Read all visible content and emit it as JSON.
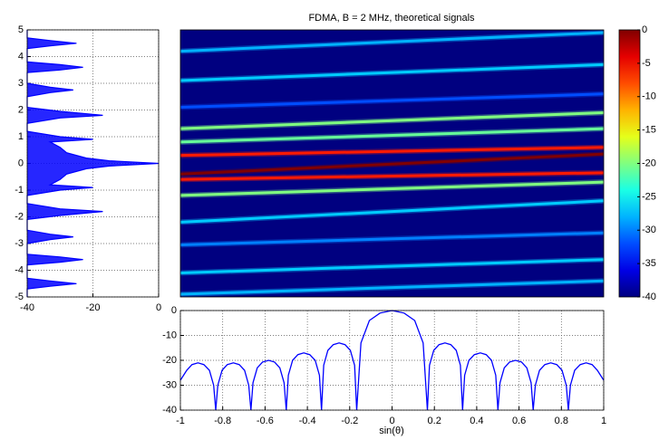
{
  "chart_data": [
    {
      "type": "spectrum",
      "color": "#0000ff",
      "xlim": [
        -40,
        0
      ],
      "xticks": [
        -40,
        -20,
        0
      ],
      "ylim": [
        -5,
        5
      ],
      "yticks": [
        -5,
        -4,
        -3,
        -2,
        -1,
        0,
        1,
        2,
        3,
        4,
        5
      ],
      "grid": true,
      "y": [
        -5,
        -4.7,
        -4.6,
        -4.5,
        -4.4,
        -4.3,
        -3.8,
        -3.7,
        -3.6,
        -3.5,
        -3.4,
        -3.0,
        -2.85,
        -2.75,
        -2.65,
        -2.5,
        -2.1,
        -1.95,
        -1.8,
        -1.7,
        -1.5,
        -1.2,
        -1.0,
        -0.9,
        -0.8,
        -0.6,
        -0.4,
        -0.2,
        -0.1,
        0,
        0.1,
        0.2,
        0.4,
        0.6,
        0.8,
        0.9,
        1.0,
        1.2,
        1.5,
        1.7,
        1.8,
        1.95,
        2.1,
        2.5,
        2.65,
        2.75,
        2.85,
        3.0,
        3.4,
        3.5,
        3.6,
        3.7,
        3.8,
        4.3,
        4.4,
        4.5,
        4.6,
        4.7,
        5
      ],
      "values": [
        -40,
        -40,
        -33,
        -25,
        -33,
        -40,
        -40,
        -30,
        -23,
        -30,
        -40,
        -40,
        -33,
        -26,
        -33,
        -40,
        -40,
        -30,
        -17,
        -30,
        -40,
        -40,
        -30,
        -20,
        -33,
        -30,
        -28,
        -22,
        -15,
        0,
        -15,
        -22,
        -28,
        -30,
        -33,
        -20,
        -30,
        -40,
        -40,
        -30,
        -17,
        -30,
        -40,
        -40,
        -33,
        -26,
        -33,
        -40,
        -40,
        -30,
        -23,
        -30,
        -40,
        -40,
        -33,
        -25,
        -33,
        -40,
        -40
      ]
    },
    {
      "type": "heatmap",
      "title": "FDMA, B = 2 MHz, theoretical signals",
      "xlim": [
        -1,
        1
      ],
      "ylim": [
        -5,
        5
      ],
      "clim": [
        -40,
        0
      ],
      "cticks": [
        0,
        -5,
        -10,
        -15,
        -20,
        -25,
        -30,
        -35,
        -40
      ],
      "stripes": [
        {
          "y_start": 4.2,
          "y_end": 4.9,
          "level": -28
        },
        {
          "y_start": 3.1,
          "y_end": 3.7,
          "level": -27
        },
        {
          "y_start": 2.1,
          "y_end": 2.6,
          "level": -32
        },
        {
          "y_start": 1.3,
          "y_end": 1.9,
          "level": -20
        },
        {
          "y_start": 0.8,
          "y_end": 1.3,
          "level": -21
        },
        {
          "y_start": 0.3,
          "y_end": 0.6,
          "level": -6
        },
        {
          "y_start": -0.4,
          "y_end": 0.35,
          "level": 0
        },
        {
          "y_start": -0.6,
          "y_end": -0.35,
          "level": -6
        },
        {
          "y_start": -1.2,
          "y_end": -0.7,
          "level": -20
        },
        {
          "y_start": -2.2,
          "y_end": -1.4,
          "level": -27
        },
        {
          "y_start": -3.05,
          "y_end": -2.6,
          "level": -30
        },
        {
          "y_start": -4.1,
          "y_end": -3.6,
          "level": -27
        },
        {
          "y_start": -4.9,
          "y_end": -4.4,
          "level": -28
        }
      ]
    },
    {
      "type": "line",
      "xlabel": "sin(θ)",
      "color": "#0000ff",
      "xlim": [
        -1,
        1
      ],
      "xticks": [
        -1,
        -0.8,
        -0.6,
        -0.4,
        -0.2,
        0,
        0.2,
        0.4,
        0.6,
        0.8,
        1
      ],
      "ylim": [
        -40,
        0
      ],
      "yticks": [
        0,
        -10,
        -20,
        -30,
        -40
      ],
      "grid": true,
      "x": [
        -1,
        -0.97,
        -0.945,
        -0.917,
        -0.889,
        -0.863,
        -0.843,
        -0.833,
        -0.823,
        -0.803,
        -0.778,
        -0.75,
        -0.722,
        -0.697,
        -0.677,
        -0.667,
        -0.657,
        -0.637,
        -0.612,
        -0.583,
        -0.555,
        -0.53,
        -0.51,
        -0.5,
        -0.49,
        -0.47,
        -0.445,
        -0.417,
        -0.389,
        -0.363,
        -0.343,
        -0.333,
        -0.323,
        -0.303,
        -0.278,
        -0.25,
        -0.222,
        -0.197,
        -0.177,
        -0.167,
        -0.147,
        -0.107,
        -0.057,
        0,
        0.057,
        0.107,
        0.147,
        0.167,
        0.177,
        0.197,
        0.222,
        0.25,
        0.278,
        0.303,
        0.323,
        0.333,
        0.343,
        0.363,
        0.389,
        0.417,
        0.445,
        0.47,
        0.49,
        0.5,
        0.51,
        0.53,
        0.555,
        0.583,
        0.612,
        0.637,
        0.657,
        0.667,
        0.677,
        0.697,
        0.722,
        0.75,
        0.778,
        0.803,
        0.823,
        0.833,
        0.843,
        0.863,
        0.889,
        0.917,
        0.945,
        0.97,
        1
      ],
      "values": [
        -28,
        -24,
        -21.7,
        -21,
        -21.7,
        -24,
        -30,
        -40,
        -30,
        -24,
        -21.7,
        -21,
        -21.7,
        -24,
        -30,
        -40,
        -29,
        -23,
        -20.7,
        -20,
        -20.7,
        -23,
        -29,
        -40,
        -26,
        -20,
        -17.7,
        -17,
        -17.7,
        -20,
        -26,
        -40,
        -22,
        -16,
        -13.7,
        -13,
        -13.7,
        -16,
        -22,
        -40,
        -13,
        -4,
        -1,
        0,
        -1,
        -4,
        -13,
        -40,
        -22,
        -16,
        -13.7,
        -13,
        -13.7,
        -16,
        -22,
        -40,
        -26,
        -20,
        -17.7,
        -17,
        -17.7,
        -20,
        -26,
        -40,
        -29,
        -23,
        -20.7,
        -20,
        -20.7,
        -23,
        -29,
        -40,
        -30,
        -24,
        -21.7,
        -21,
        -21.7,
        -24,
        -30,
        -40,
        -30,
        -24,
        -21.7,
        -21,
        -21.7,
        -24,
        -28
      ]
    }
  ]
}
